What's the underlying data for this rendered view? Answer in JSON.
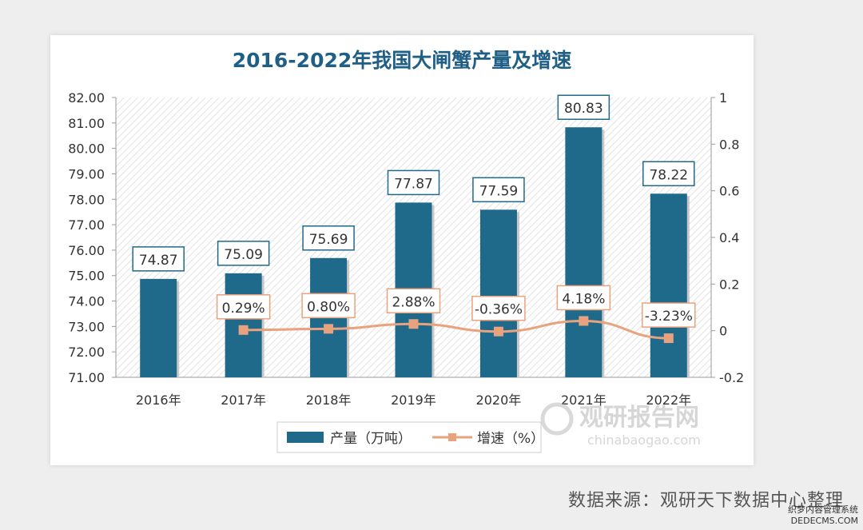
{
  "chart_data": {
    "type": "bar",
    "title": "2016-2022年我国大闸蟹产量及增速",
    "categories": [
      "2016年",
      "2017年",
      "2018年",
      "2019年",
      "2020年",
      "2021年",
      "2022年"
    ],
    "series": [
      {
        "name": "产量（万吨）",
        "type": "bar",
        "axis": "left",
        "color": "#1f6a8a",
        "values": [
          74.87,
          75.09,
          75.69,
          77.87,
          77.59,
          80.83,
          78.22
        ],
        "labels": [
          "74.87",
          "75.09",
          "75.69",
          "77.87",
          "77.59",
          "80.83",
          "78.22"
        ]
      },
      {
        "name": "增速（%）",
        "type": "line",
        "axis": "right",
        "color": "#e9a27e",
        "values": [
          null,
          0.0029,
          0.008,
          0.0288,
          -0.0036,
          0.0418,
          -0.0323
        ],
        "labels": [
          "",
          "0.29%",
          "0.80%",
          "2.88%",
          "-0.36%",
          "4.18%",
          "-3.23%"
        ]
      }
    ],
    "y_left": {
      "min": 71,
      "max": 82,
      "step": 1,
      "ticks": [
        "71.00",
        "72.00",
        "73.00",
        "74.00",
        "75.00",
        "76.00",
        "77.00",
        "78.00",
        "79.00",
        "80.00",
        "81.00",
        "82.00"
      ]
    },
    "y_right": {
      "min": -0.2,
      "max": 1,
      "step": 0.2,
      "ticks": [
        "-0.2",
        "0",
        "0.2",
        "0.4",
        "0.6",
        "0.8",
        "1"
      ]
    },
    "legend_position": "bottom",
    "grid": false,
    "plot_background": "diagonal-hatch"
  },
  "watermark": {
    "brand_cn": "观研报告网",
    "brand_url": "chinabaogao.com"
  },
  "source": "数据来源：观研天下数据中心整理",
  "corner_mark": {
    "line1": "织梦内容管理系统",
    "line2": "DEDECMS.COM"
  }
}
